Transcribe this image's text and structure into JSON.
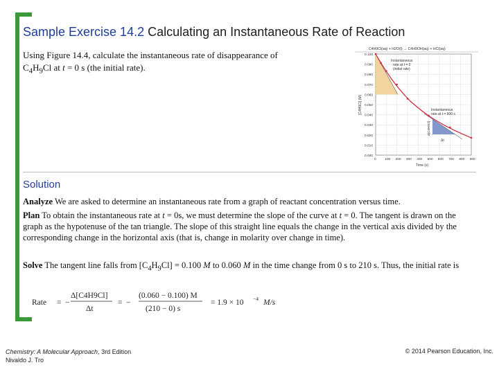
{
  "slide": {
    "title_prefix": "Sample Exercise 14.2",
    "title_text": "Calculating an Instantaneous Rate of Reaction",
    "intro_line1": "Using Figure 14.4, calculate the instantaneous rate of disappearance of",
    "intro_line2_pre": "C",
    "intro_sub1": "4",
    "intro_mid": "H",
    "intro_sub2": "9",
    "intro_line2_post": "Cl at ",
    "intro_t": "t",
    "intro_line2_end": " = 0 s (the initial rate).",
    "solution_heading": "Solution",
    "analyze_label": "Analyze",
    "analyze_text": " We are asked to determine an instantaneous rate from a graph of reactant concentration versus time.",
    "plan_label": "Plan",
    "plan_text_a": " To obtain the instantaneous rate at ",
    "plan_t1": "t",
    "plan_text_b": " = 0s, we must determine the slope of the curve at ",
    "plan_t2": "t",
    "plan_text_c": " = 0. The tangent is drawn on the graph as the hypotenuse of the tan triangle. The slope of this straight line equals the change in the vertical axis divided by the corresponding change in the horizontal axis (that is, change in molarity over change in time).",
    "solve_label": "Solve",
    "solve_text_a": " The tangent line falls from [C",
    "solve_sub1": "4",
    "solve_text_b": "H",
    "solve_sub2": "9",
    "solve_text_c": "Cl] = 0.100 ",
    "solve_M1": "M",
    "solve_text_d": " to 0.060 ",
    "solve_M2": "M",
    "solve_text_e": " in the time change from 0 s to 210 s. Thus, the initial rate is"
  },
  "equation": {
    "lhs": "Rate",
    "eq": "=",
    "minus": "−",
    "frac1_num": "Δ[C4H9Cl]",
    "frac1_den": "Δt",
    "frac2_num": "(0.060 − 0.100) M",
    "frac2_den": "(210 − 0) s",
    "result": "= 1.9 × 10",
    "exponent": "−4",
    "units": "M/s"
  },
  "figure": {
    "header": "C4H9Cl(aq) + H2O(l) → C4H9OH(aq) + HCl(aq)",
    "ylabel": "[C4H9Cl] (M)",
    "xlabel": "Time (s)",
    "yticks": [
      "0.100",
      "0.090",
      "0.080",
      "0.070",
      "0.060",
      "0.050",
      "0.040",
      "0.030",
      "0.020",
      "0.010",
      "0.000"
    ],
    "xticks": [
      "0",
      "100",
      "200",
      "300",
      "400",
      "500",
      "600",
      "700",
      "800",
      "900"
    ],
    "annot1_l1": "Instantaneous",
    "annot1_l2": "rate at t = 0",
    "annot1_l3": "(initial rate)",
    "annot2_l1": "Instantaneous",
    "annot2_l2": "rate at t = 600 s",
    "delta_conc": "Δ[C4H9Cl]",
    "delta_t": "Δt",
    "colors": {
      "curve": "#d0213a",
      "tan_triangle": "#f2cf96",
      "blue_triangle": "#6f86c4",
      "axis": "#444444"
    }
  },
  "footer": {
    "book": "Chemistry: A Molecular Approach",
    "edition": ", 3rd Edition",
    "author": "Nivaldo J. Tro",
    "copyright": "© 2014 Pearson Education, Inc."
  }
}
